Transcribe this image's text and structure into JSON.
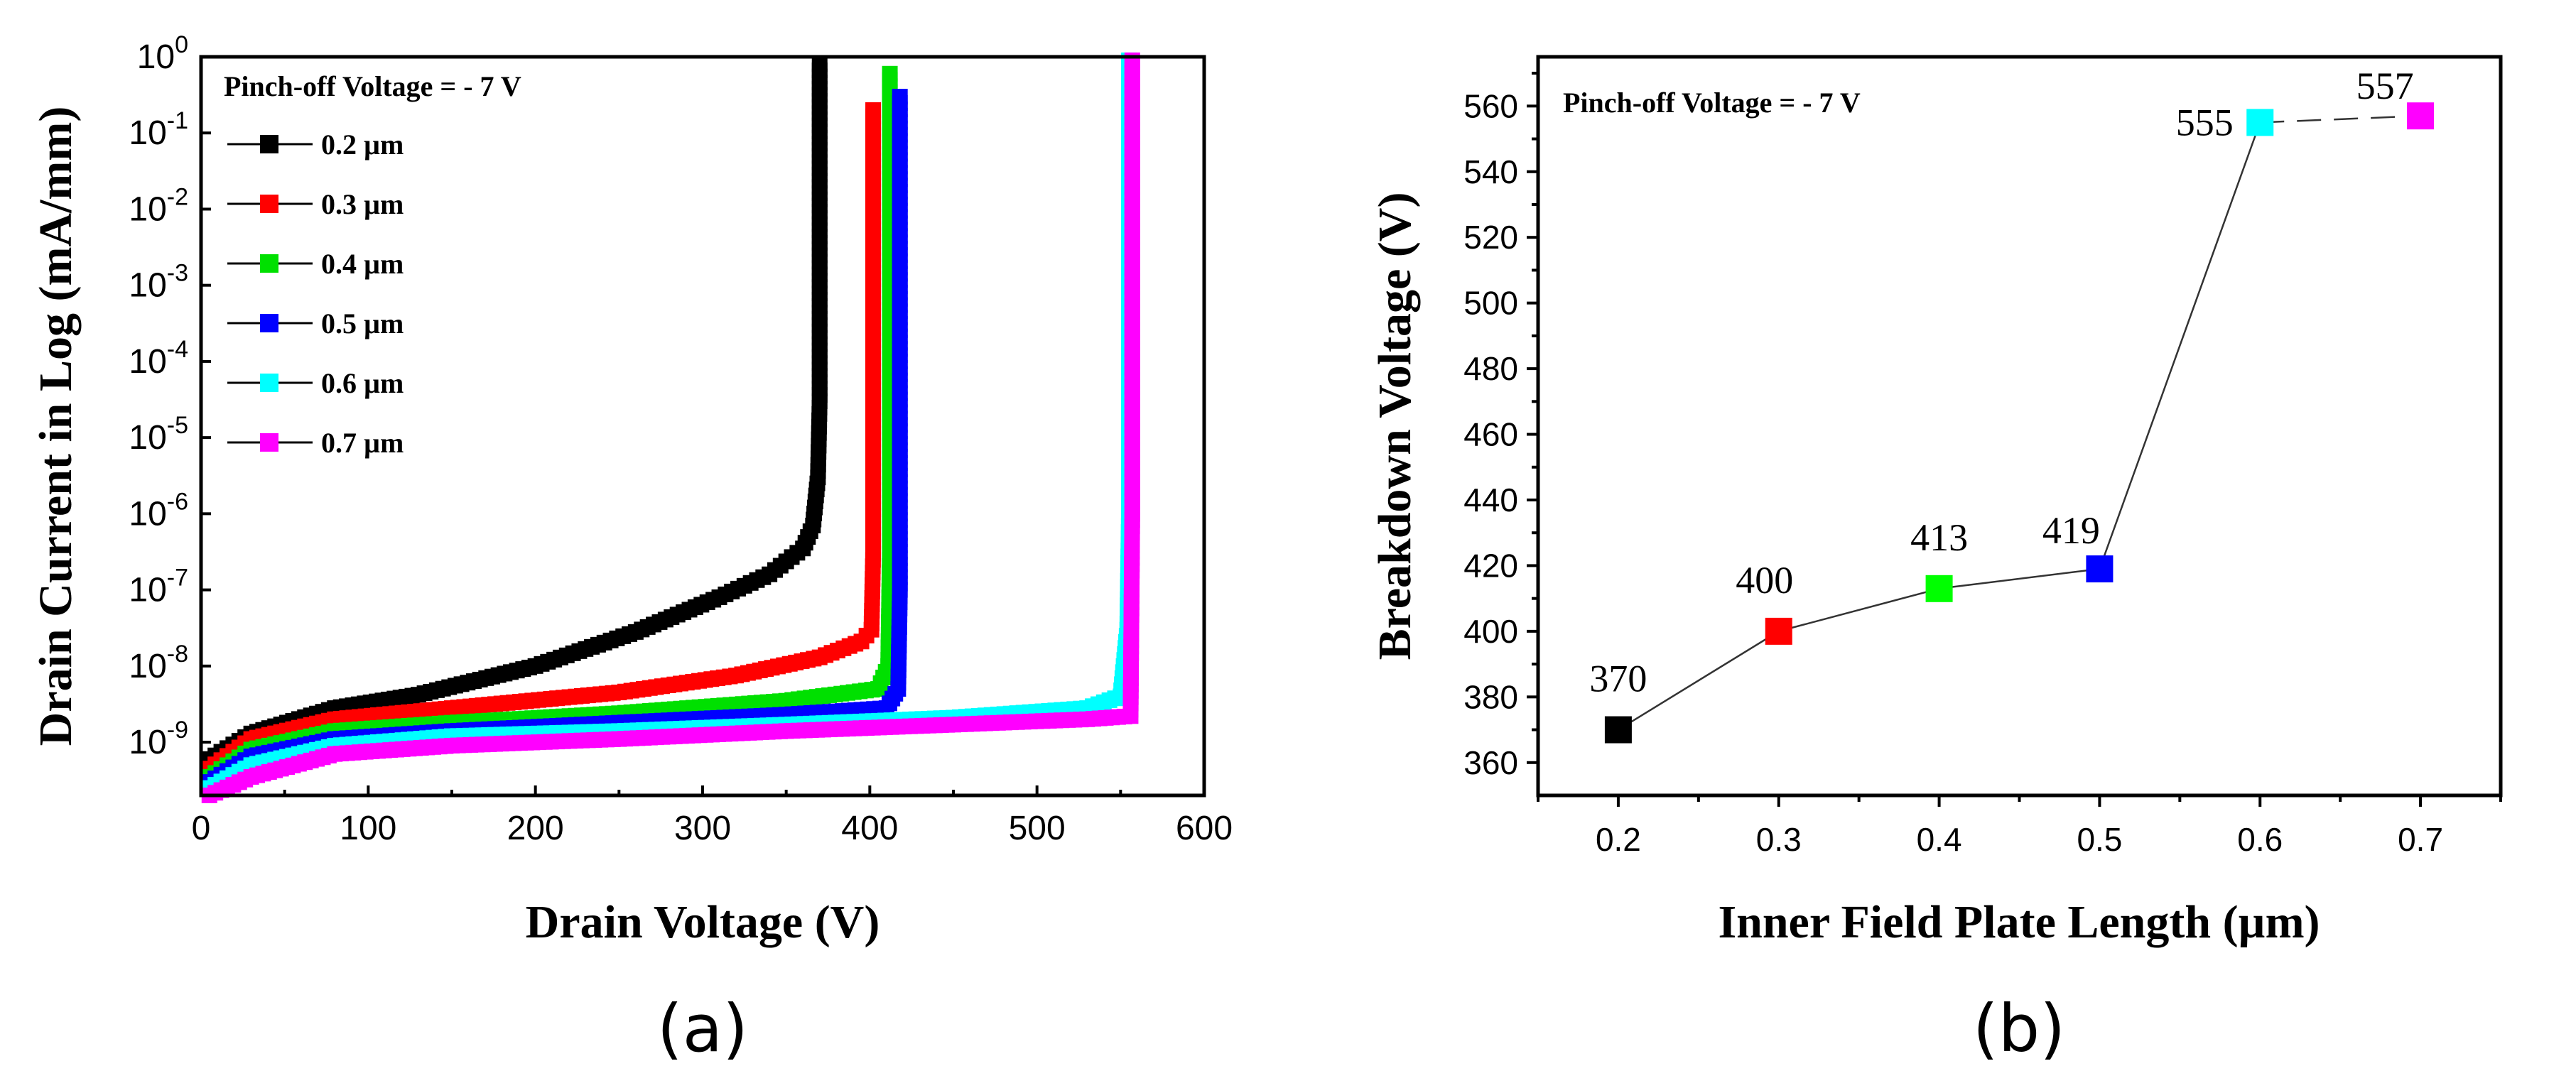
{
  "chart_data": [
    {
      "type": "scatter",
      "caption": "(a)",
      "title": "",
      "annotation": "Pinch-off Voltage = - 7 V",
      "xlabel": "Drain Voltage (V)",
      "ylabel": "Drain Current in Log (mA/mm)",
      "yscale": "log",
      "xlim": [
        0,
        600
      ],
      "ylim": [
        2e-10,
        1
      ],
      "xticks": [
        "0",
        "100",
        "200",
        "300",
        "400",
        "500",
        "600"
      ],
      "xtick_values": [
        0,
        100,
        200,
        300,
        400,
        500,
        600
      ],
      "yticks": [
        {
          "mantissa": "10",
          "exp": "-9",
          "value": 1e-09
        },
        {
          "mantissa": "10",
          "exp": "-8",
          "value": 1e-08
        },
        {
          "mantissa": "10",
          "exp": "-7",
          "value": 1e-07
        },
        {
          "mantissa": "10",
          "exp": "-6",
          "value": 1e-06
        },
        {
          "mantissa": "10",
          "exp": "-5",
          "value": 1e-05
        },
        {
          "mantissa": "10",
          "exp": "-4",
          "value": 0.0001
        },
        {
          "mantissa": "10",
          "exp": "-3",
          "value": 0.001
        },
        {
          "mantissa": "10",
          "exp": "-2",
          "value": 0.01
        },
        {
          "mantissa": "10",
          "exp": "-1",
          "value": 0.1
        },
        {
          "mantissa": "10",
          "exp": "0",
          "value": 1
        }
      ],
      "legend_position": "top-left",
      "series": [
        {
          "name": "0.2 µm",
          "color": "#000000",
          "x": [
            5,
            30,
            80,
            130,
            200,
            260,
            310,
            340,
            360,
            366,
            369,
            370,
            370,
            370,
            370,
            370
          ],
          "y": [
            6e-10,
            1.3e-09,
            2.8e-09,
            4.2e-09,
            1e-08,
            2.8e-08,
            8e-08,
            1.6e-07,
            3.5e-07,
            7e-07,
            3e-06,
            3e-05,
            0.0003,
            0.003,
            0.05,
            0.8
          ]
        },
        {
          "name": "0.3 µm",
          "color": "#ff0000",
          "x": [
            5,
            30,
            80,
            150,
            250,
            320,
            370,
            395,
            401,
            402,
            402,
            402,
            402,
            402,
            402
          ],
          "y": [
            4.5e-10,
            1.1e-09,
            2e-09,
            2.8e-09,
            4.5e-09,
            7.5e-09,
            1.3e-08,
            2.1e-08,
            3e-08,
            3e-07,
            3e-06,
            3e-05,
            0.001,
            0.03,
            0.2
          ]
        },
        {
          "name": "0.4 µm",
          "color": "#00e000",
          "x": [
            5,
            30,
            80,
            150,
            250,
            350,
            405,
            411,
            412,
            412,
            412,
            412,
            412,
            412
          ],
          "y": [
            3.5e-10,
            8e-10,
            1.4e-09,
            1.8e-09,
            2.4e-09,
            3.5e-09,
            5e-09,
            1e-08,
            3e-07,
            3e-06,
            5e-05,
            0.001,
            0.03,
            0.6
          ]
        },
        {
          "name": "0.5 µm",
          "color": "#0000ff",
          "x": [
            5,
            30,
            80,
            150,
            250,
            350,
            410,
            417,
            418,
            418,
            418,
            418,
            418,
            418
          ],
          "y": [
            3e-10,
            6.5e-10,
            1.1e-09,
            1.4e-09,
            1.8e-09,
            2.3e-09,
            2.8e-09,
            5e-09,
            1e-07,
            1e-05,
            0.0001,
            0.0025,
            0.03,
            0.3
          ]
        },
        {
          "name": "0.6 µm",
          "color": "#00ffff",
          "x": [
            5,
            30,
            80,
            150,
            250,
            350,
            450,
            530,
            550,
            554,
            555,
            555,
            555,
            555,
            555
          ],
          "y": [
            2.5e-10,
            5e-10,
            9e-10,
            1.2e-09,
            1.4e-09,
            1.7e-09,
            2.1e-09,
            2.8e-09,
            4e-09,
            3e-08,
            1e-06,
            1e-05,
            0.0005,
            0.03,
            0.9
          ]
        },
        {
          "name": "0.7 µm",
          "color": "#ff00ff",
          "x": [
            5,
            30,
            80,
            150,
            250,
            350,
            450,
            530,
            556,
            557,
            557,
            557,
            557,
            557,
            557
          ],
          "y": [
            2e-10,
            3.5e-10,
            7e-10,
            9e-10,
            1.1e-09,
            1.4e-09,
            1.7e-09,
            2e-09,
            2.2e-09,
            1e-06,
            1e-05,
            0.0001,
            0.002,
            0.05,
            0.9
          ]
        }
      ]
    },
    {
      "type": "line",
      "caption": "(b)",
      "title": "",
      "annotation": "Pinch-off Voltage = - 7 V",
      "xlabel": "Inner Field Plate Length (µm)",
      "ylabel": "Breakdown Voltage (V)",
      "xlim": [
        0.15,
        0.75
      ],
      "ylim": [
        350,
        575
      ],
      "xticks": [
        "0.2",
        "0.3",
        "0.4",
        "0.5",
        "0.6",
        "0.7"
      ],
      "xtick_values": [
        0.2,
        0.3,
        0.4,
        0.5,
        0.6,
        0.7
      ],
      "yticks": [
        "360",
        "380",
        "400",
        "420",
        "440",
        "460",
        "480",
        "500",
        "520",
        "540",
        "560"
      ],
      "ytick_values": [
        360,
        380,
        400,
        420,
        440,
        460,
        480,
        500,
        520,
        540,
        560
      ],
      "points": [
        {
          "x": 0.2,
          "y": 370,
          "label": "370",
          "color": "#000000"
        },
        {
          "x": 0.3,
          "y": 400,
          "label": "400",
          "color": "#ff0000"
        },
        {
          "x": 0.4,
          "y": 413,
          "label": "413",
          "color": "#00ff00"
        },
        {
          "x": 0.5,
          "y": 419,
          "label": "419",
          "color": "#0000ff"
        },
        {
          "x": 0.6,
          "y": 555,
          "label": "555",
          "color": "#00ffff"
        },
        {
          "x": 0.7,
          "y": 557,
          "label": "557",
          "color": "#ff00ff"
        }
      ]
    }
  ]
}
